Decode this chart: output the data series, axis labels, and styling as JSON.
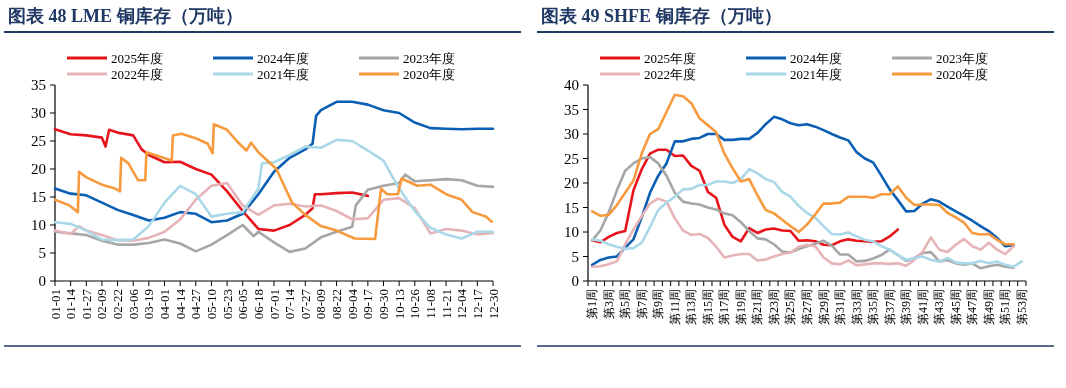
{
  "chart_data": [
    {
      "type": "line",
      "title": "图表 48 LME 铜库存（万吨）",
      "legend": "top",
      "xlim": [
        "--01-01",
        "--12-30"
      ],
      "xticks": [
        {
          "value": "--01-01",
          "label": "01-01"
        },
        {
          "value": "--01-14",
          "label": "01-14"
        },
        {
          "value": "--01-27",
          "label": "01-27"
        },
        {
          "value": "--02-09",
          "label": "02-09"
        },
        {
          "value": "--02-22",
          "label": "02-22"
        },
        {
          "value": "--03-06",
          "label": "03-06"
        },
        {
          "value": "--03-19",
          "label": "03-19"
        },
        {
          "value": "--04-01",
          "label": "04-01"
        },
        {
          "value": "--04-14",
          "label": "04-14"
        },
        {
          "value": "--04-27",
          "label": "04-27"
        },
        {
          "value": "--05-10",
          "label": "05-10"
        },
        {
          "value": "--05-23",
          "label": "05-23"
        },
        {
          "value": "--06-05",
          "label": "06-05"
        },
        {
          "value": "--06-18",
          "label": "06-18"
        },
        {
          "value": "--07-01",
          "label": "07-01"
        },
        {
          "value": "--07-14",
          "label": "07-14"
        },
        {
          "value": "--07-27",
          "label": "07-27"
        },
        {
          "value": "--08-09",
          "label": "08-09"
        },
        {
          "value": "--08-22",
          "label": "08-22"
        },
        {
          "value": "--09-04",
          "label": "09-04"
        },
        {
          "value": "--09-17",
          "label": "09-17"
        },
        {
          "value": "--09-30",
          "label": "09-30"
        },
        {
          "value": "--10-13",
          "label": "10-13"
        },
        {
          "value": "--10-26",
          "label": "10-26"
        },
        {
          "value": "--11-08",
          "label": "11-08"
        },
        {
          "value": "--11-21",
          "label": "11-21"
        },
        {
          "value": "--12-04",
          "label": "12-04"
        },
        {
          "value": "--12-17",
          "label": "12-17"
        },
        {
          "value": "--12-30",
          "label": "12-30"
        }
      ],
      "ylim": [
        0,
        35
      ],
      "yticks": [
        0,
        5,
        10,
        15,
        20,
        25,
        30,
        35
      ],
      "series": [
        {
          "name": "2025年度",
          "color": "#e8141c",
          "x": [
            "--01-01",
            "--01-14",
            "--01-27",
            "--02-09",
            "--02-12",
            "--02-15",
            "--02-22",
            "--03-06",
            "--03-13",
            "--03-19",
            "--04-01",
            "--04-14",
            "--04-27",
            "--05-10",
            "--05-23",
            "--06-05",
            "--06-18",
            "--07-01",
            "--07-14",
            "--07-27",
            "--08-02",
            "--08-04",
            "--08-09",
            "--08-22",
            "--09-04",
            "--09-17"
          ],
          "values": [
            27.1,
            26.2,
            26.0,
            25.6,
            24.0,
            27.0,
            26.5,
            26.0,
            23.5,
            22.5,
            21.2,
            21.3,
            20.0,
            19.0,
            16.0,
            12.5,
            9.3,
            9.0,
            10.0,
            11.8,
            13.0,
            15.5,
            15.5,
            15.7,
            15.8,
            15.2
          ]
        },
        {
          "name": "2024年度",
          "color": "#0a5fb4",
          "x": [
            "--01-01",
            "--01-14",
            "--01-27",
            "--02-09",
            "--02-22",
            "--03-06",
            "--03-19",
            "--04-01",
            "--04-14",
            "--04-27",
            "--05-10",
            "--05-23",
            "--06-05",
            "--06-18",
            "--07-01",
            "--07-14",
            "--07-27",
            "--08-02",
            "--08-05",
            "--08-09",
            "--08-22",
            "--09-04",
            "--09-17",
            "--09-30",
            "--10-13",
            "--10-26",
            "--11-08",
            "--11-21",
            "--12-04",
            "--12-17",
            "--12-30"
          ],
          "values": [
            16.5,
            15.6,
            15.3,
            14.0,
            12.7,
            11.8,
            10.8,
            11.3,
            12.3,
            12.0,
            10.5,
            10.8,
            12.0,
            15.5,
            19.5,
            22.0,
            23.5,
            24.5,
            29.5,
            30.5,
            32.0,
            32.0,
            31.5,
            30.5,
            30.0,
            28.3,
            27.3,
            27.2,
            27.1,
            27.2,
            27.2
          ]
        },
        {
          "name": "2023年度",
          "color": "#a6a6a6",
          "x": [
            "--01-01",
            "--01-14",
            "--01-27",
            "--02-09",
            "--02-22",
            "--03-06",
            "--03-19",
            "--04-01",
            "--04-14",
            "--04-27",
            "--05-10",
            "--05-23",
            "--06-05",
            "--06-14",
            "--06-18",
            "--07-01",
            "--07-14",
            "--07-27",
            "--08-09",
            "--08-22",
            "--09-04",
            "--09-07",
            "--09-17",
            "--09-30",
            "--10-13",
            "--10-18",
            "--10-26",
            "--11-08",
            "--11-21",
            "--12-04",
            "--12-17",
            "--12-30"
          ],
          "values": [
            8.8,
            8.5,
            8.2,
            7.2,
            6.5,
            6.5,
            6.8,
            7.4,
            6.7,
            5.3,
            6.5,
            8.2,
            10.0,
            8.0,
            8.8,
            6.9,
            5.2,
            5.8,
            7.8,
            8.8,
            9.7,
            13.5,
            16.3,
            17.0,
            17.5,
            19.0,
            17.8,
            18.0,
            18.2,
            18.0,
            17.0,
            16.8
          ]
        },
        {
          "name": "2022年度",
          "color": "#e6b4b8",
          "x": [
            "--01-01",
            "--01-14",
            "--01-21",
            "--01-27",
            "--02-09",
            "--02-22",
            "--03-06",
            "--03-19",
            "--04-01",
            "--04-14",
            "--04-27",
            "--05-10",
            "--05-23",
            "--06-05",
            "--06-18",
            "--07-01",
            "--07-14",
            "--07-27",
            "--08-09",
            "--08-22",
            "--09-04",
            "--09-17",
            "--09-30",
            "--10-13",
            "--10-26",
            "--11-08",
            "--11-21",
            "--12-04",
            "--12-17",
            "--12-30"
          ],
          "values": [
            9.0,
            8.4,
            9.8,
            9.0,
            8.2,
            7.3,
            7.2,
            7.7,
            8.8,
            11.0,
            14.5,
            17.0,
            17.5,
            13.5,
            11.8,
            13.5,
            13.8,
            13.3,
            13.5,
            12.5,
            11.0,
            11.2,
            14.5,
            14.8,
            13.0,
            8.5,
            9.3,
            9.0,
            8.3,
            8.6
          ]
        },
        {
          "name": "2021年度",
          "color": "#a9d8e8",
          "x": [
            "--01-01",
            "--01-14",
            "--01-27",
            "--02-09",
            "--02-22",
            "--03-06",
            "--03-19",
            "--04-01",
            "--04-14",
            "--04-27",
            "--05-10",
            "--05-23",
            "--06-05",
            "--06-18",
            "--06-21",
            "--07-01",
            "--07-14",
            "--07-27",
            "--08-09",
            "--08-22",
            "--09-04",
            "--09-17",
            "--09-30",
            "--10-13",
            "--10-26",
            "--11-08",
            "--11-21",
            "--12-04",
            "--12-17",
            "--12-30"
          ],
          "values": [
            10.5,
            10.2,
            9.0,
            7.4,
            7.3,
            7.4,
            9.8,
            14.0,
            17.0,
            15.5,
            11.5,
            12.0,
            12.3,
            16.5,
            21.0,
            21.2,
            22.5,
            24.0,
            23.8,
            25.2,
            25.0,
            23.3,
            21.5,
            16.5,
            12.5,
            9.5,
            8.3,
            7.6,
            8.8,
            8.8
          ]
        },
        {
          "name": "2020年度",
          "color": "#f79a3e",
          "x": [
            "--01-01",
            "--01-13",
            "--01-20",
            "--01-21",
            "--01-27",
            "--02-09",
            "--02-20",
            "--02-24",
            "--02-25",
            "--03-02",
            "--03-10",
            "--03-16",
            "--03-17",
            "--03-24",
            "--04-07",
            "--04-08",
            "--04-15",
            "--04-27",
            "--05-07",
            "--05-11",
            "--05-12",
            "--05-23",
            "--05-31",
            "--06-08",
            "--06-12",
            "--06-18",
            "--07-03",
            "--07-16",
            "--07-27",
            "--08-09",
            "--08-22",
            "--09-06",
            "--09-23",
            "--09-28",
            "--10-03",
            "--10-12",
            "--10-15",
            "--10-28",
            "--11-08",
            "--11-21",
            "--12-04",
            "--12-13",
            "--12-24",
            "--12-29"
          ],
          "values": [
            14.5,
            13.5,
            12.3,
            19.5,
            18.5,
            17.2,
            16.5,
            16.0,
            22.0,
            21.0,
            18.0,
            18.0,
            23.0,
            22.5,
            21.5,
            26.0,
            26.3,
            25.5,
            24.5,
            22.8,
            28.0,
            27.0,
            25.0,
            23.3,
            24.7,
            23.0,
            20.0,
            14.0,
            11.8,
            9.8,
            9.0,
            7.6,
            7.5,
            16.5,
            15.5,
            15.5,
            18.3,
            17.0,
            17.2,
            15.5,
            14.5,
            12.3,
            11.5,
            10.6
          ]
        }
      ]
    },
    {
      "type": "line",
      "title": "图表 49 SHFE 铜库存（万吨）",
      "legend": "top",
      "categories": [
        "第1周",
        null,
        "第3周",
        null,
        "第5周",
        null,
        "第7周",
        null,
        "第9周",
        null,
        "第11周",
        null,
        "第13周",
        null,
        "第15周",
        null,
        "第17周",
        null,
        "第19周",
        null,
        "第21周",
        null,
        "第23周",
        null,
        "第25周",
        null,
        "第27周",
        null,
        "第29周",
        null,
        "第31周",
        null,
        "第33周",
        null,
        "第35周",
        null,
        "第37周",
        null,
        "第39周",
        null,
        "第41周",
        null,
        "第43周",
        null,
        "第45周",
        null,
        "第47周",
        null,
        "第49周",
        null,
        "第51周",
        null,
        "第53周"
      ],
      "ylim": [
        0,
        40
      ],
      "yticks": [
        0,
        5,
        10,
        15,
        20,
        25,
        30,
        35,
        40
      ],
      "series": [
        {
          "name": "2025年度",
          "color": "#e8141c",
          "values": [
            8.3,
            7.9,
            9.0,
            9.8,
            10.2,
            18.5,
            22.8,
            26.0,
            26.8,
            26.8,
            25.5,
            25.6,
            23.5,
            22.5,
            18.2,
            17.0,
            11.5,
            9.0,
            8.1,
            10.8,
            9.8,
            10.5,
            10.7,
            10.3,
            10.2,
            8.2,
            8.3,
            8.1,
            7.4,
            7.3,
            8.1,
            8.5,
            8.2,
            8.1,
            8.0,
            8.1,
            9.1,
            10.5,
            null,
            null,
            null,
            null,
            null,
            null,
            null,
            null,
            null,
            null,
            null,
            null,
            null,
            null,
            null
          ]
        },
        {
          "name": "2024年度",
          "color": "#0a5fb4",
          "values": [
            3.3,
            4.3,
            4.8,
            5.0,
            6.8,
            8.5,
            13.0,
            18.0,
            21.5,
            24.0,
            28.5,
            28.5,
            29.0,
            29.2,
            30.0,
            30.0,
            28.8,
            28.8,
            29.0,
            29.0,
            30.2,
            32.0,
            33.5,
            33.0,
            32.2,
            31.8,
            32.0,
            31.5,
            30.8,
            30.0,
            29.3,
            28.7,
            26.3,
            25.0,
            24.2,
            21.5,
            18.7,
            16.5,
            14.2,
            14.3,
            15.8,
            16.7,
            16.2,
            15.2,
            14.2,
            13.3,
            12.3,
            11.2,
            10.2,
            8.8,
            7.1,
            7.3,
            null
          ]
        },
        {
          "name": "2023年度",
          "color": "#a6a6a6",
          "values": [
            8.3,
            10.3,
            14.0,
            18.5,
            22.5,
            24.0,
            25.0,
            25.3,
            24.0,
            21.5,
            18.0,
            16.2,
            15.8,
            15.6,
            15.0,
            14.6,
            13.8,
            13.4,
            12.0,
            10.2,
            8.7,
            8.5,
            7.5,
            6.0,
            5.8,
            6.5,
            7.1,
            7.6,
            8.2,
            7.2,
            5.4,
            5.4,
            4.0,
            4.1,
            4.6,
            5.3,
            6.4,
            5.3,
            4.1,
            4.7,
            5.7,
            5.9,
            4.0,
            4.3,
            3.6,
            3.3,
            3.6,
            2.6,
            3.0,
            3.3,
            2.9,
            2.7,
            null
          ]
        },
        {
          "name": "2022年度",
          "color": "#e6b4b8",
          "values": [
            2.9,
            3.0,
            3.4,
            4.0,
            7.5,
            10.5,
            13.2,
            15.8,
            16.8,
            16.2,
            12.8,
            10.3,
            9.4,
            9.6,
            8.8,
            7.0,
            4.8,
            5.2,
            5.5,
            5.5,
            4.2,
            4.4,
            5.0,
            5.5,
            5.8,
            7.0,
            7.4,
            7.1,
            4.8,
            3.6,
            3.4,
            4.2,
            3.2,
            3.4,
            3.6,
            3.6,
            3.5,
            3.6,
            3.1,
            4.3,
            6.0,
            8.9,
            6.4,
            5.9,
            7.4,
            8.6,
            7.1,
            6.4,
            7.8,
            6.4,
            5.5,
            7.1,
            null
          ]
        },
        {
          "name": "2021年度",
          "color": "#a9d8e8",
          "values": [
            8.5,
            8.2,
            7.5,
            7.0,
            6.6,
            6.7,
            7.8,
            11.0,
            14.5,
            16.0,
            17.2,
            18.7,
            18.8,
            19.6,
            19.6,
            20.3,
            20.3,
            20.0,
            20.8,
            22.8,
            22.0,
            20.8,
            20.2,
            18.2,
            17.2,
            15.3,
            13.9,
            12.9,
            11.2,
            9.6,
            9.5,
            9.9,
            9.1,
            8.4,
            8.1,
            7.1,
            6.4,
            5.3,
            4.3,
            4.7,
            5.0,
            4.3,
            4.0,
            4.7,
            3.8,
            3.6,
            3.6,
            4.1,
            3.6,
            4.0,
            3.3,
            2.9,
            4.0
          ]
        },
        {
          "name": "2020年度",
          "color": "#f79a3e",
          "values": [
            14.2,
            13.3,
            13.5,
            15.5,
            18.0,
            20.5,
            26.0,
            30.0,
            31.0,
            34.5,
            38.0,
            37.7,
            36.3,
            33.2,
            31.8,
            30.4,
            26.0,
            23.0,
            20.3,
            20.8,
            17.5,
            14.5,
            13.8,
            12.5,
            11.2,
            10.0,
            11.5,
            13.6,
            15.8,
            15.8,
            16.0,
            17.2,
            17.2,
            17.2,
            17.0,
            17.7,
            17.7,
            19.3,
            17.0,
            15.5,
            15.6,
            15.6,
            15.5,
            13.9,
            13.0,
            11.9,
            9.8,
            9.5,
            9.6,
            8.4,
            7.5,
            7.5,
            null
          ]
        }
      ]
    }
  ]
}
